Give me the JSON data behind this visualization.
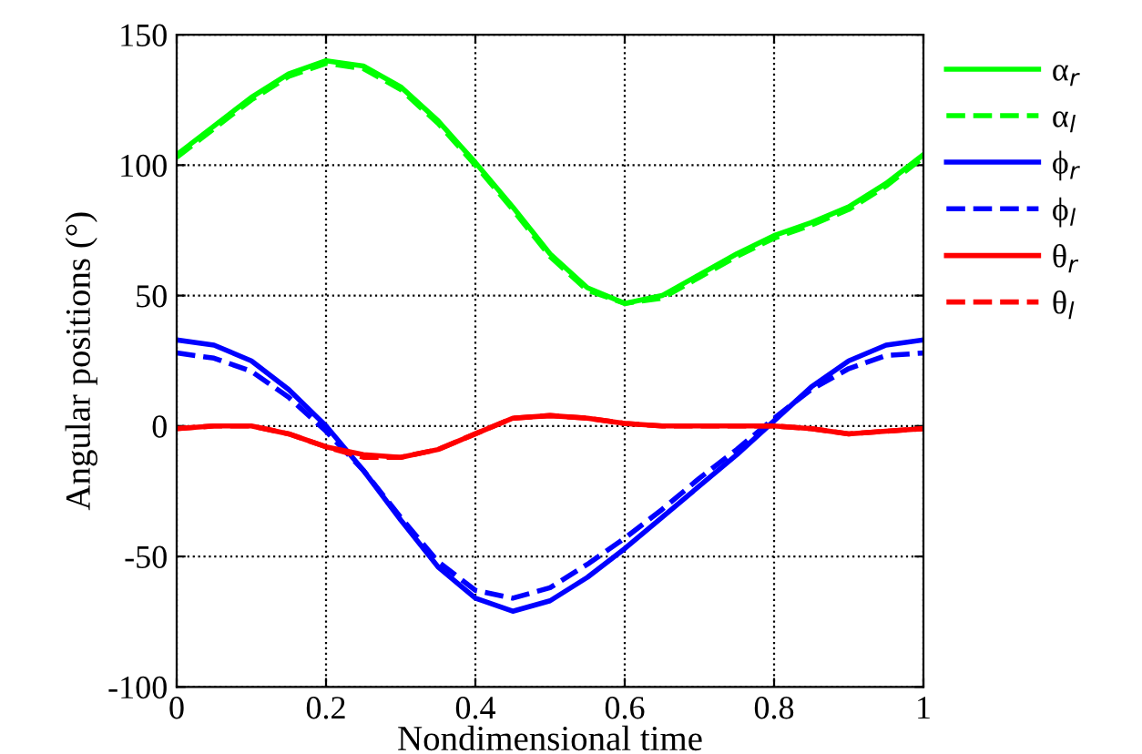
{
  "chart_data": {
    "type": "line",
    "xlabel": "Nondimensional time",
    "ylabel": "Angular positions (°)",
    "x": [
      0,
      0.05,
      0.1,
      0.15,
      0.2,
      0.25,
      0.3,
      0.35,
      0.4,
      0.45,
      0.5,
      0.55,
      0.6,
      0.65,
      0.7,
      0.75,
      0.8,
      0.85,
      0.9,
      0.95,
      1
    ],
    "series": [
      {
        "name": "α$_{r}$",
        "color": "#00ff00",
        "line_style": "solid",
        "values": [
          104,
          115,
          126,
          135,
          140,
          138,
          130,
          117,
          101,
          84,
          66,
          53,
          47,
          50,
          58,
          66,
          73,
          78,
          84,
          93,
          104
        ]
      },
      {
        "name": "α$_{l}$",
        "color": "#00ff00",
        "line_style": "dashed",
        "values": [
          103,
          114,
          125,
          134,
          139,
          137,
          129,
          116,
          100,
          83,
          65,
          52,
          47,
          49,
          57,
          65,
          72,
          77,
          83,
          92,
          103
        ]
      },
      {
        "name": "ϕ$_{r}$",
        "color": "#0000ff",
        "line_style": "solid",
        "values": [
          33,
          31,
          25,
          14,
          0,
          -17,
          -36,
          -54,
          -66,
          -71,
          -67,
          -58,
          -47,
          -35,
          -23,
          -11,
          2,
          15,
          25,
          31,
          33
        ]
      },
      {
        "name": "ϕ$_{l}$",
        "color": "#0000ff",
        "line_style": "dashed",
        "values": [
          28,
          26,
          21,
          11,
          -2,
          -17,
          -35,
          -52,
          -63,
          -66,
          -62,
          -53,
          -43,
          -32,
          -20,
          -9,
          3,
          14,
          22,
          27,
          28
        ]
      },
      {
        "name": "θ$_{r}$",
        "color": "#ff0000",
        "line_style": "solid",
        "values": [
          -1,
          0,
          0,
          -3,
          -8,
          -11,
          -12,
          -9,
          -3,
          3,
          4,
          3,
          1,
          0,
          0,
          0,
          0,
          -1,
          -3,
          -2,
          -1
        ]
      },
      {
        "name": "θ$_{l}$",
        "color": "#ff0000",
        "line_style": "dashed",
        "values": [
          -1,
          0,
          0,
          -3,
          -8,
          -12,
          -12,
          -9,
          -3,
          3,
          4,
          3,
          1,
          0,
          0,
          0,
          0,
          -1,
          -3,
          -2,
          -1
        ]
      }
    ],
    "xlim": [
      0,
      1
    ],
    "xticks": [
      0,
      0.2,
      0.4,
      0.6,
      0.8,
      1
    ],
    "ylim": [
      -100,
      150
    ],
    "yticks": [
      -100,
      -50,
      0,
      50,
      100,
      150
    ],
    "grid": true,
    "legend": "top right",
    "marker": "none"
  }
}
